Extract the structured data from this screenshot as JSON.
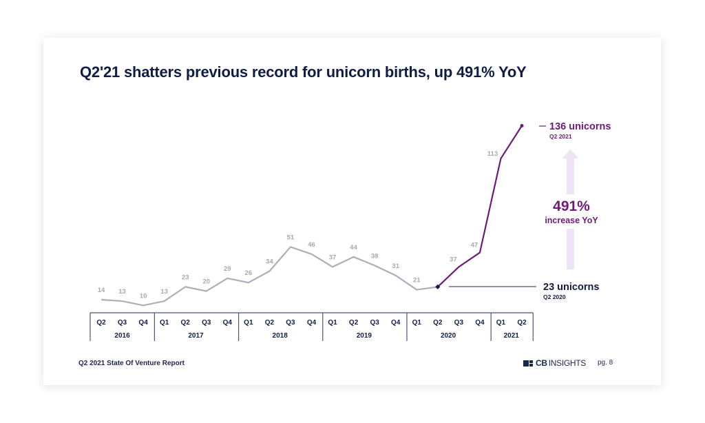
{
  "slide": {
    "title": "Q2'21 shatters previous record for unicorn births, up 491% YoY",
    "footer_report": "Q2 2021 State Of Venture Report",
    "logo_text_bold": "CB",
    "logo_text": "INSIGHTS",
    "page_label": "pg. 8"
  },
  "annotations": {
    "top_value": "136 unicorns",
    "top_period": "Q2 2021",
    "bottom_value": "23 unicorns",
    "bottom_period": "Q2 2020",
    "increase_pct": "491%",
    "increase_label": "increase YoY"
  },
  "colors": {
    "navy": "#0f1c44",
    "gray_line": "#aeadbc",
    "gray_label": "#a7a7b3",
    "purple": "#6e1a78",
    "arrow": "#ede5f3",
    "axis": "#4a5478"
  },
  "chart_data": {
    "type": "line",
    "title": "Q2'21 shatters previous record for unicorn births, up 491% YoY",
    "xlabel": "",
    "ylabel": "",
    "grid": false,
    "categories": [
      "Q2 2016",
      "Q3 2016",
      "Q4 2016",
      "Q1 2017",
      "Q2 2017",
      "Q3 2017",
      "Q4 2017",
      "Q1 2018",
      "Q2 2018",
      "Q3 2018",
      "Q4 2018",
      "Q1 2019",
      "Q2 2019",
      "Q3 2019",
      "Q4 2019",
      "Q1 2020",
      "Q2 2020",
      "Q3 2020",
      "Q4 2020",
      "Q1 2021",
      "Q2 2021"
    ],
    "quarter_labels": [
      "Q2",
      "Q3",
      "Q4",
      "Q1",
      "Q2",
      "Q3",
      "Q4",
      "Q1",
      "Q2",
      "Q3",
      "Q4",
      "Q1",
      "Q2",
      "Q3",
      "Q4",
      "Q1",
      "Q2",
      "Q3",
      "Q4",
      "Q1",
      "Q2"
    ],
    "years": [
      {
        "label": "2016",
        "span": 3
      },
      {
        "label": "2017",
        "span": 4
      },
      {
        "label": "2018",
        "span": 4
      },
      {
        "label": "2019",
        "span": 4
      },
      {
        "label": "2020",
        "span": 4
      },
      {
        "label": "2021",
        "span": 2
      }
    ],
    "series": [
      {
        "name": "Unicorn births",
        "values": [
          14,
          13,
          10,
          13,
          23,
          20,
          29,
          26,
          34,
          51,
          46,
          37,
          44,
          38,
          31,
          21,
          23,
          37,
          47,
          113,
          136
        ]
      }
    ],
    "data_labels": [
      "14",
      "13",
      "10",
      "13",
      "23",
      "20",
      "29",
      "26",
      "34",
      "51",
      "46",
      "37",
      "44",
      "38",
      "31",
      "21",
      "",
      "37",
      "47",
      "113",
      ""
    ],
    "highlight_from_index": 16,
    "ylim": [
      0,
      140
    ]
  }
}
